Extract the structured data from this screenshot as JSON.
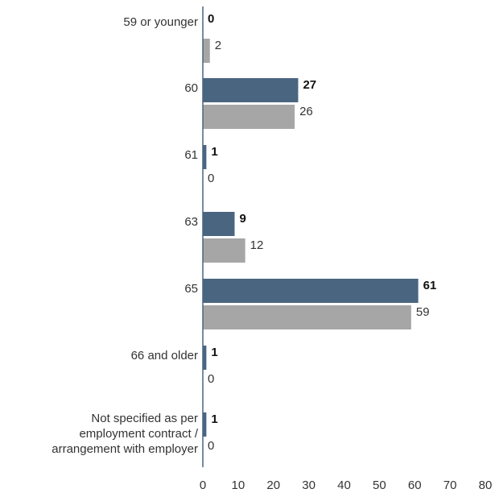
{
  "chart_data": {
    "type": "bar",
    "orientation": "horizontal",
    "categories": [
      [
        "59 or younger"
      ],
      [
        "60"
      ],
      [
        "61"
      ],
      [
        "63"
      ],
      [
        "65"
      ],
      [
        "66 and older"
      ],
      [
        "Not specified as per",
        "employment contract /",
        "arrangement with employer"
      ]
    ],
    "series": [
      {
        "values": [
          0,
          27,
          1,
          9,
          61,
          1,
          1
        ],
        "color": "#4a6580",
        "label_weight": "bold"
      },
      {
        "values": [
          2,
          26,
          0,
          12,
          59,
          0,
          0
        ],
        "color": "#a6a6a6",
        "label_weight": "normal"
      }
    ],
    "xlim": [
      0,
      80
    ],
    "xticks": [
      0,
      10,
      20,
      30,
      40,
      50,
      60,
      70,
      80
    ],
    "grid": false,
    "legend": "none"
  }
}
